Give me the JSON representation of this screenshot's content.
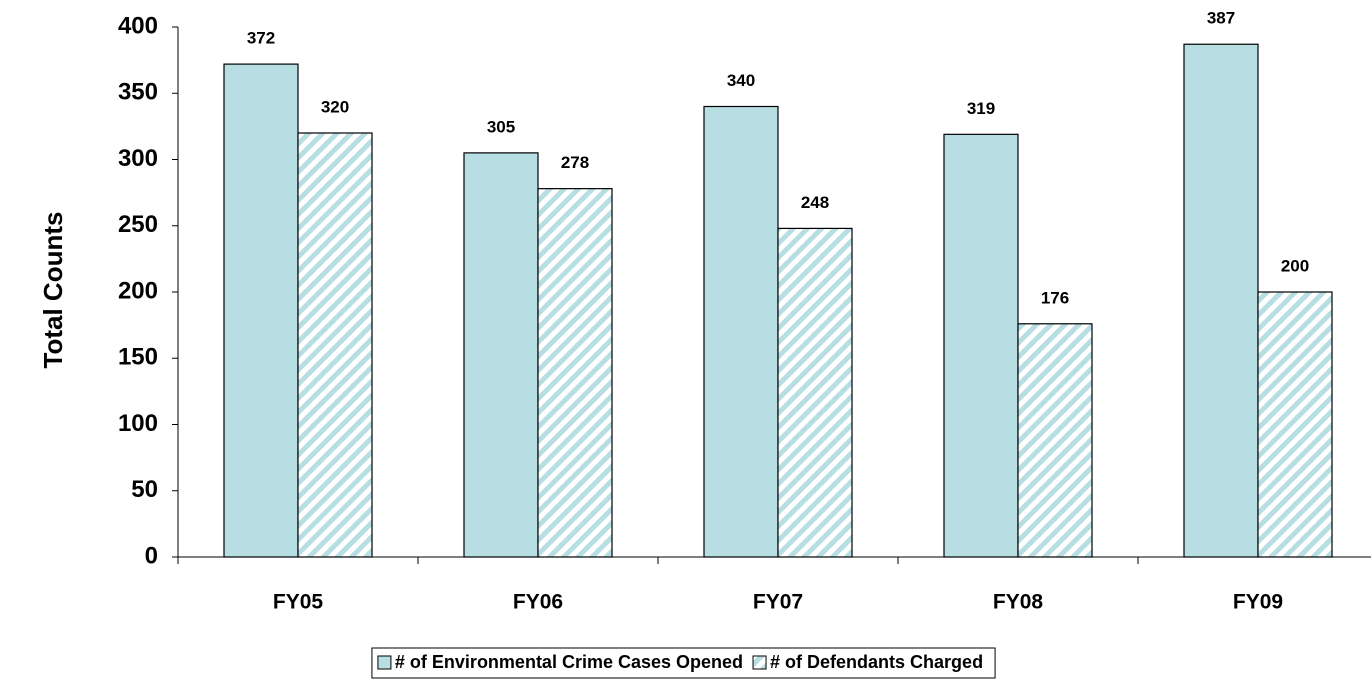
{
  "chart_data": {
    "type": "bar",
    "y_label": "Total Counts",
    "categories": [
      "FY05",
      "FY06",
      "FY07",
      "FY08",
      "FY09"
    ],
    "series": [
      {
        "name": "# of Environmental Crime Cases Opened",
        "color": "#b7dfe3",
        "values": [
          372,
          305,
          340,
          319,
          387
        ]
      },
      {
        "name": "# of Defendants Charged",
        "color": "#b7dfe3",
        "hatched": true,
        "values": [
          320,
          278,
          248,
          176,
          200
        ]
      }
    ],
    "ylim": [
      0,
      400
    ],
    "yticks": [
      0,
      50,
      100,
      150,
      200,
      250,
      300,
      350,
      400
    ],
    "legend": "bottom"
  }
}
